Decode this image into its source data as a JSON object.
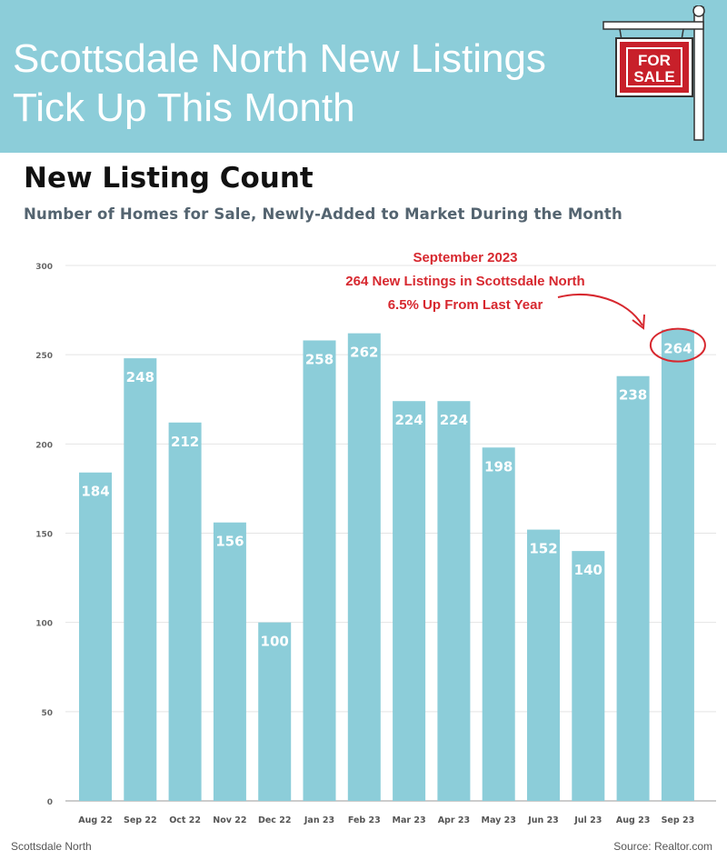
{
  "header": {
    "title_line1": "Scottsdale North New Listings",
    "title_line2": "Tick Up This Month",
    "sign_line1": "FOR",
    "sign_line2": "SALE"
  },
  "colors": {
    "banner": "#8ccdd9",
    "bar": "#8ccdd9",
    "annotation": "#d7282f",
    "sign_red": "#c8202a"
  },
  "chart_data": {
    "type": "bar",
    "title": "New Listing Count",
    "subtitle": "Number of Homes for Sale, Newly-Added to Market During the Month",
    "categories": [
      "Aug 22",
      "Sep 22",
      "Oct 22",
      "Nov 22",
      "Dec 22",
      "Jan 23",
      "Feb 23",
      "Mar 23",
      "Apr 23",
      "May 23",
      "Jun 23",
      "Jul 23",
      "Aug 23",
      "Sep 23"
    ],
    "values": [
      184,
      248,
      212,
      156,
      100,
      258,
      262,
      224,
      224,
      198,
      152,
      140,
      238,
      264
    ],
    "data_labels": [
      "184",
      "248",
      "212",
      "156",
      "100",
      "258",
      "262",
      "224",
      "224",
      "198",
      "152",
      "140",
      "238",
      "264"
    ],
    "ylim": [
      0,
      300
    ],
    "yticks": [
      "0",
      "50",
      "100",
      "150",
      "200",
      "250",
      "300"
    ],
    "ytick_values": [
      0,
      50,
      100,
      150,
      200,
      250,
      300
    ],
    "grid": true,
    "annotation": {
      "lines": [
        "September 2023",
        "264 New Listings in Scottsdale North",
        "6.5% Up From Last Year"
      ],
      "target_category": "Sep 23"
    }
  },
  "footer": {
    "left": "Scottsdale North",
    "right": "Source: Realtor.com"
  }
}
